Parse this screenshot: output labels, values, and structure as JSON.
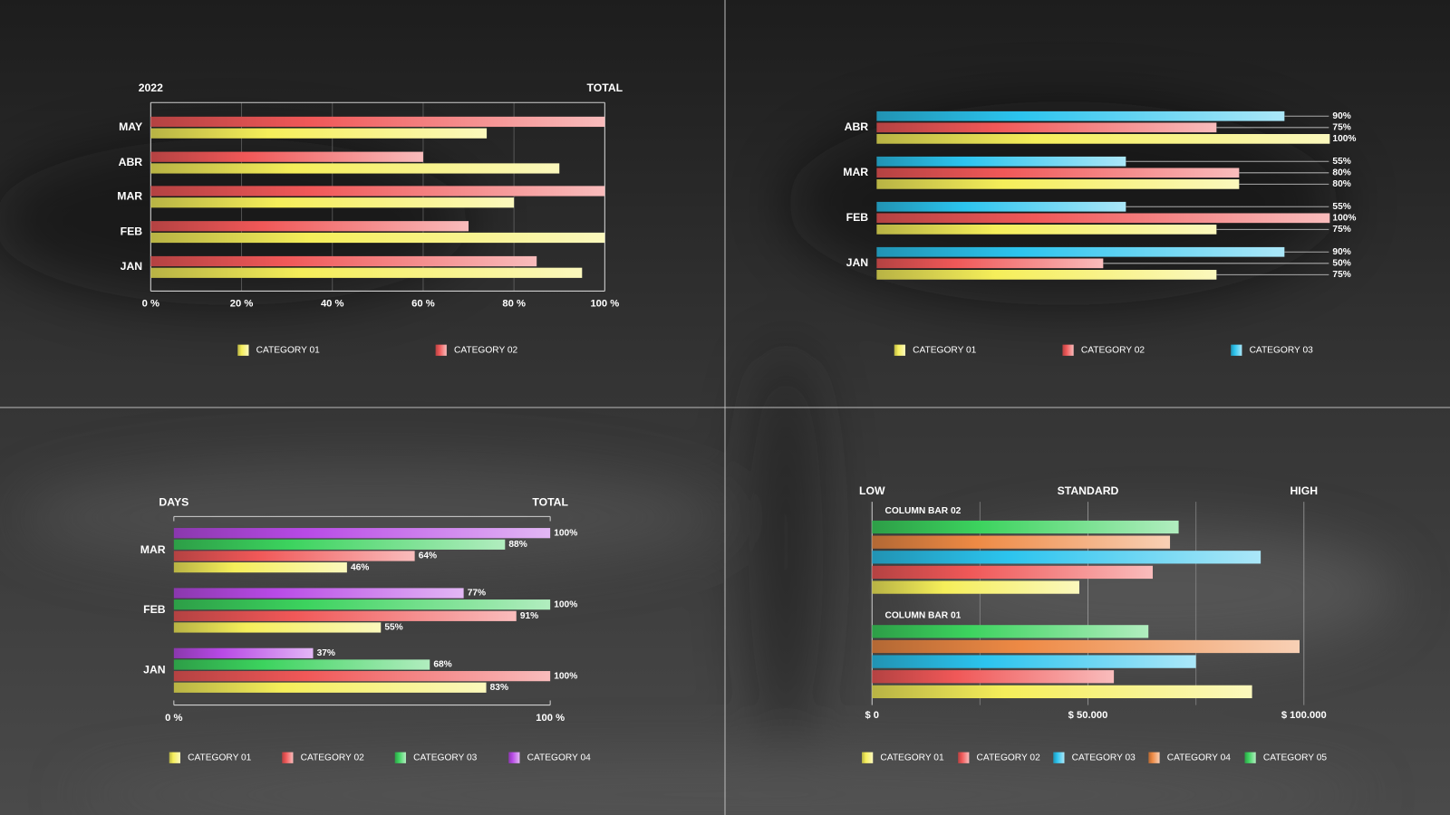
{
  "chart_data": [
    {
      "type": "bar",
      "x_label_left": "2022",
      "x_label_right": "TOTAL",
      "categories": [
        "MAY",
        "ABR",
        "MAR",
        "FEB",
        "JAN"
      ],
      "series": [
        {
          "name": "CATEGORY 01",
          "color": "#f5ee5a",
          "values": [
            74,
            90,
            80,
            100,
            95
          ]
        },
        {
          "name": "CATEGORY 02",
          "color": "#f05858",
          "values": [
            100,
            60,
            100,
            70,
            85
          ]
        }
      ],
      "xlim": [
        0,
        100
      ],
      "xticks": [
        {
          "value": 0,
          "label": "0 %"
        },
        {
          "value": 20,
          "label": "20 %"
        },
        {
          "value": 40,
          "label": "40 %"
        },
        {
          "value": 60,
          "label": "60 %"
        },
        {
          "value": 80,
          "label": "80 %"
        },
        {
          "value": 100,
          "label": "100 %"
        }
      ],
      "grid": true
    },
    {
      "type": "bar",
      "categories": [
        "ABR",
        "MAR",
        "FEB",
        "JAN"
      ],
      "series": [
        {
          "name": "CATEGORY 01",
          "color": "#f5ee5a",
          "values": [
            100,
            80,
            75,
            75
          ],
          "value_labels": [
            "100%",
            "80%",
            "75%",
            "75%"
          ]
        },
        {
          "name": "CATEGORY 02",
          "color": "#f05858",
          "values": [
            75,
            80,
            100,
            50
          ],
          "value_labels": [
            "75%",
            "80%",
            "100%",
            "50%"
          ]
        },
        {
          "name": "CATEGORY 03",
          "color": "#2cc4ee",
          "values": [
            90,
            55,
            55,
            90
          ],
          "value_labels": [
            "90%",
            "55%",
            "55%",
            "90%"
          ]
        }
      ]
    },
    {
      "type": "bar",
      "x_label_left": "DAYS",
      "x_label_right": "TOTAL",
      "categories": [
        "MAR",
        "FEB",
        "JAN"
      ],
      "series": [
        {
          "name": "CATEGORY 01",
          "color": "#f5ee5a",
          "values": [
            46,
            55,
            83
          ],
          "value_labels": [
            "46%",
            "55%",
            "83%"
          ]
        },
        {
          "name": "CATEGORY 02",
          "color": "#f05858",
          "values": [
            64,
            91,
            100
          ],
          "value_labels": [
            "64%",
            "91%",
            "100%"
          ]
        },
        {
          "name": "CATEGORY 03",
          "color": "#3cd35e",
          "values": [
            88,
            100,
            68
          ],
          "value_labels": [
            "88%",
            "100%",
            "68%"
          ]
        },
        {
          "name": "CATEGORY 04",
          "color": "#b84ae6",
          "values": [
            100,
            77,
            37
          ],
          "value_labels": [
            "100%",
            "77%",
            "37%"
          ]
        }
      ],
      "xlim": [
        0,
        100
      ],
      "xticks": [
        {
          "value": 0,
          "label": "0 %"
        },
        {
          "value": 100,
          "label": "100 %"
        }
      ]
    },
    {
      "type": "bar",
      "categories": [
        "COLUMN BAR 02",
        "COLUMN BAR 01"
      ],
      "series": [
        {
          "name": "CATEGORY 01",
          "color": "#f5ee5a",
          "values": [
            48000,
            88000
          ]
        },
        {
          "name": "CATEGORY 02",
          "color": "#f05858",
          "values": [
            65000,
            56000
          ]
        },
        {
          "name": "CATEGORY 03",
          "color": "#2cc4ee",
          "values": [
            90000,
            75000
          ]
        },
        {
          "name": "CATEGORY 04",
          "color": "#ee8a45",
          "values": [
            69000,
            99000
          ]
        },
        {
          "name": "CATEGORY 05",
          "color": "#3cd35e",
          "values": [
            71000,
            64000
          ]
        }
      ],
      "xlim": [
        0,
        100000
      ],
      "xticks": [
        {
          "value": 0,
          "label": "$ 0"
        },
        {
          "value": 50000,
          "label": "$ 50.000"
        },
        {
          "value": 100000,
          "label": "$ 100.000"
        }
      ],
      "minor_xticks": [
        25000,
        75000
      ],
      "zone_labels": [
        "LOW",
        "STANDARD",
        "HIGH"
      ],
      "grid": true
    }
  ]
}
